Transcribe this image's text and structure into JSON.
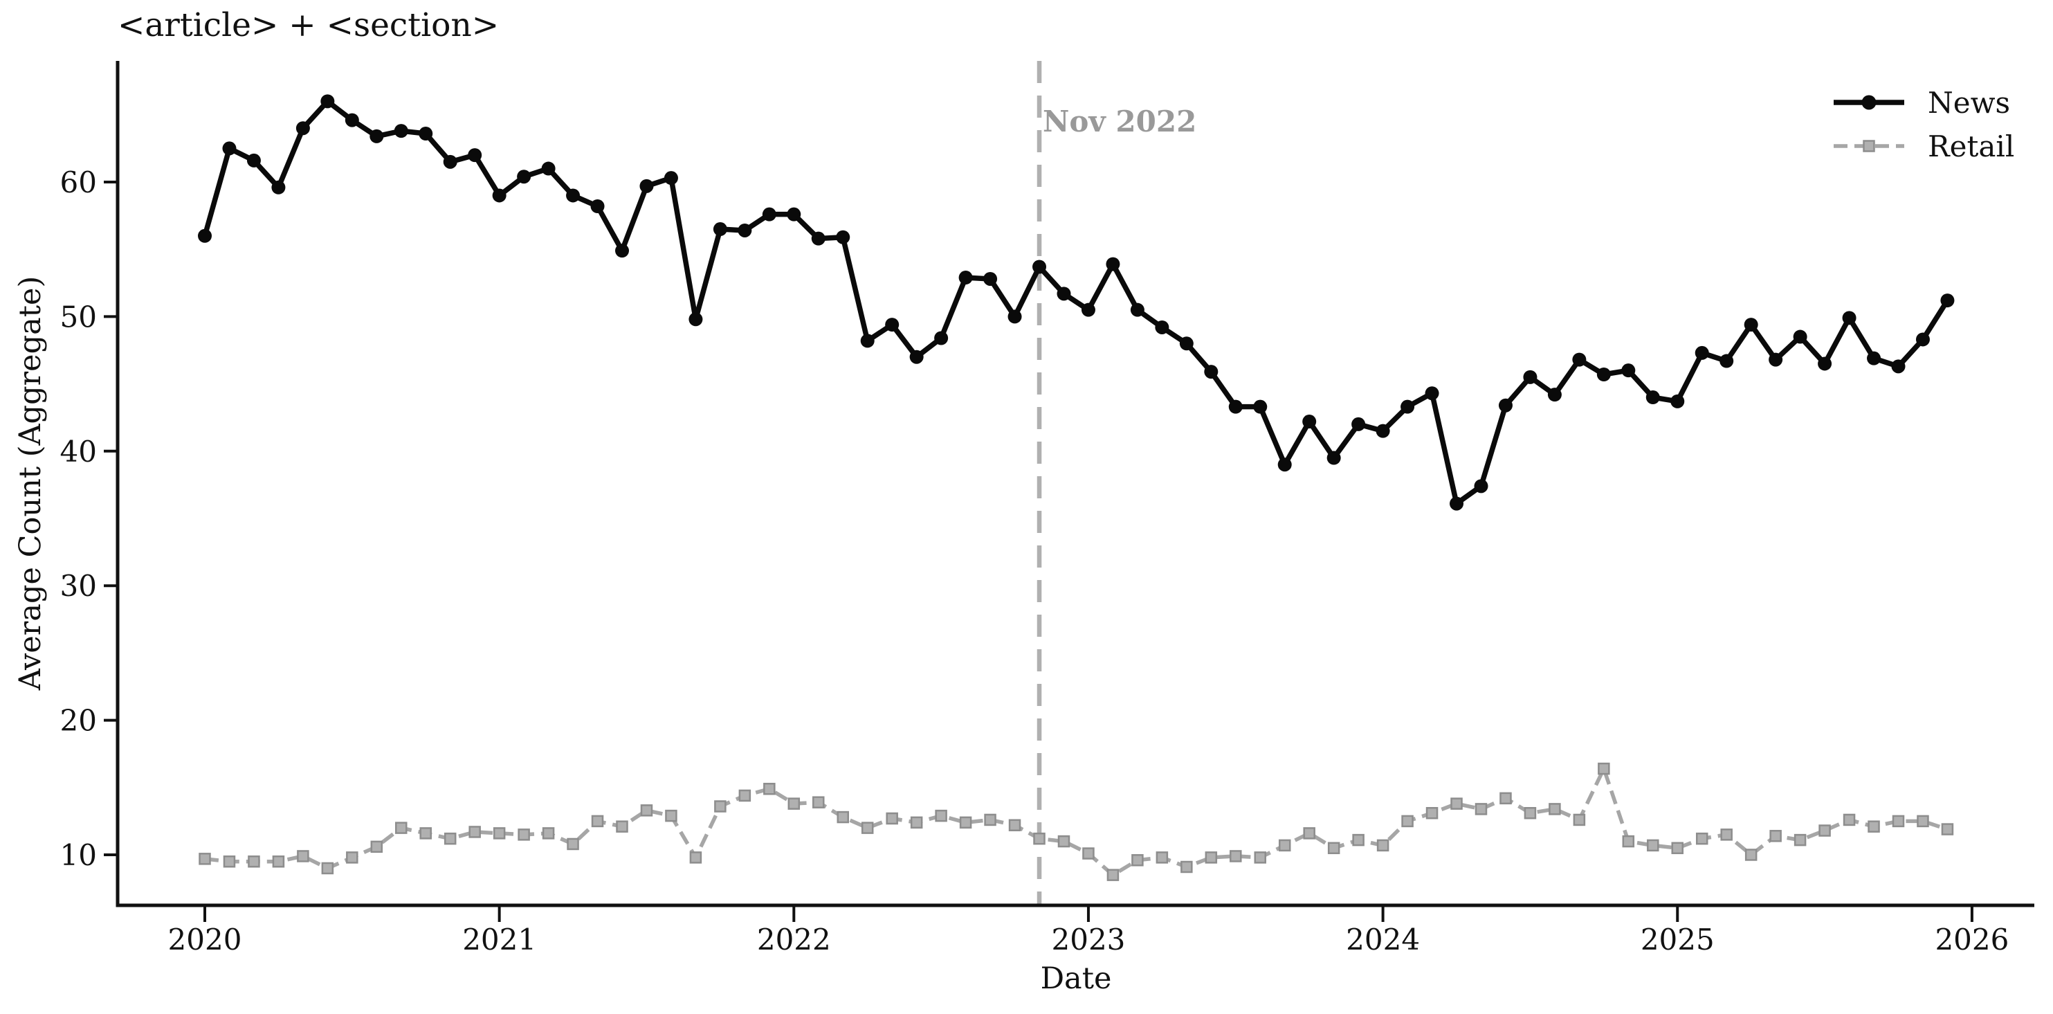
{
  "chart_data": {
    "type": "line",
    "title": "<article> + <section>",
    "xlabel": "Date",
    "ylabel": "Average Count (Aggregate)",
    "x_start": "2020-01",
    "x_end": "2025-12",
    "x_interval": "monthly",
    "x_tick_labels": [
      "2020",
      "2021",
      "2022",
      "2023",
      "2024",
      "2025",
      "2026"
    ],
    "y_ticks": [
      10,
      20,
      30,
      40,
      50,
      60
    ],
    "ylim": [
      6,
      69
    ],
    "grid": false,
    "legend_position": "upper right",
    "vline": {
      "label": "Nov 2022",
      "x": "2022-11",
      "month_index": 34,
      "style": "dashed",
      "color": "#b0b0b0",
      "label_color": "#999999"
    },
    "series": [
      {
        "name": "News",
        "color": "#0a0a0a",
        "style": "solid",
        "marker": "circle",
        "values": [
          56,
          62.5,
          61.6,
          59.6,
          64,
          66,
          64.6,
          63.4,
          63.8,
          63.6,
          61.5,
          62,
          59,
          60.4,
          61,
          59,
          58.2,
          54.9,
          59.7,
          60.3,
          49.8,
          56.5,
          56.4,
          57.6,
          57.6,
          55.8,
          55.9,
          48.2,
          49.4,
          47,
          48.4,
          52.9,
          52.8,
          50,
          53.7,
          51.7,
          50.5,
          53.9,
          50.5,
          49.2,
          48,
          45.9,
          43.3,
          43.3,
          39,
          42.2,
          39.5,
          42,
          41.5,
          43.3,
          44.3,
          36.1,
          37.4,
          43.4,
          45.5,
          44.2,
          46.8,
          45.7,
          46,
          44,
          43.7,
          47.3,
          46.7,
          49.4,
          46.8,
          48.5,
          46.5,
          49.9,
          46.9,
          46.3,
          48.3,
          51.2
        ]
      },
      {
        "name": "Retail",
        "color": "#a6a6a6",
        "marker_fill": "#b0b0b0",
        "marker_edge": "#8d8d8d",
        "style": "dashed",
        "marker": "square",
        "values": [
          9.7,
          9.5,
          9.5,
          9.5,
          9.9,
          9,
          9.8,
          10.6,
          12,
          11.6,
          11.2,
          11.7,
          11.6,
          11.5,
          11.6,
          10.8,
          12.5,
          12.1,
          13.3,
          12.9,
          9.8,
          13.6,
          14.4,
          14.9,
          13.8,
          13.9,
          12.8,
          12,
          12.7,
          12.4,
          12.9,
          12.4,
          12.6,
          12.2,
          11.2,
          11,
          10.1,
          8.5,
          9.6,
          9.8,
          9.1,
          9.8,
          9.9,
          9.8,
          10.7,
          11.6,
          10.5,
          11.1,
          10.7,
          12.5,
          13.1,
          13.8,
          13.4,
          14.2,
          13.1,
          13.4,
          12.6,
          16.4,
          11,
          10.7,
          10.5,
          11.2,
          11.5,
          10,
          11.4,
          11.1,
          11.8,
          12.6,
          12.1,
          12.5,
          12.5,
          11.9
        ]
      }
    ]
  },
  "colors": {
    "background": "#ffffff",
    "axis": "#111111",
    "text": "#111111",
    "news": "#0a0a0a",
    "retail": "#a6a6a6",
    "vline": "#b0b0b0",
    "annotation": "#999999"
  }
}
